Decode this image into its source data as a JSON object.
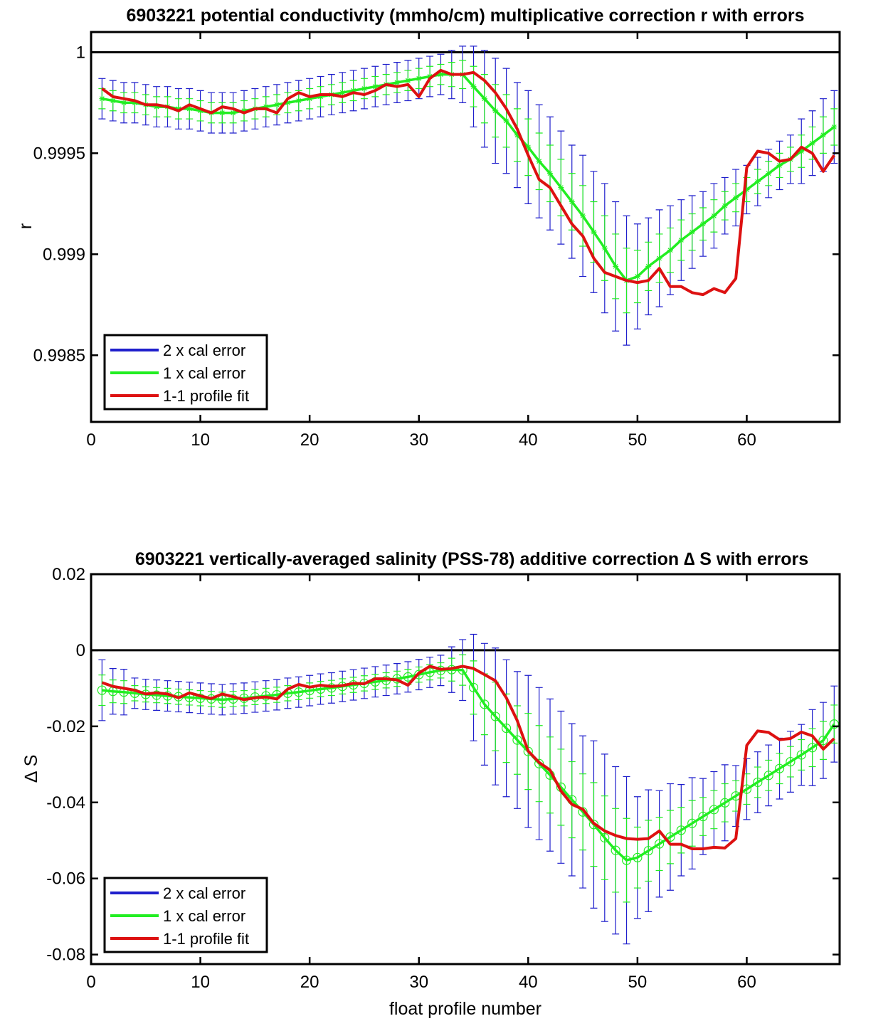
{
  "chart_data": [
    {
      "type": "line",
      "title": "6903221 potential conductivity (mmho/cm) multiplicative correction r with errors",
      "xlabel": "",
      "ylabel": "r",
      "xlim": [
        0,
        68.5
      ],
      "ylim": [
        0.99817,
        1.0001
      ],
      "reference_line": 1,
      "grid": false,
      "legend_placement": "bottom-left",
      "xticks": [
        "0",
        "10",
        "20",
        "30",
        "40",
        "50",
        "60"
      ],
      "yticks": [
        "0.9985",
        "0.999",
        "0.9995",
        "1"
      ],
      "legend": [
        "2 x cal error",
        "1 x cal error",
        "1-1 profile fit"
      ],
      "colors": {
        "two_x": "#1f1fcc",
        "one_x": "#22ee22",
        "fit": "#dd1111",
        "reference": "#000000"
      },
      "x": [
        1,
        2,
        3,
        4,
        5,
        6,
        7,
        8,
        9,
        10,
        11,
        12,
        13,
        14,
        15,
        16,
        17,
        18,
        19,
        20,
        21,
        22,
        23,
        24,
        25,
        26,
        27,
        28,
        29,
        30,
        31,
        32,
        33,
        34,
        35,
        36,
        37,
        38,
        39,
        40,
        41,
        42,
        43,
        44,
        45,
        46,
        47,
        48,
        49,
        50,
        51,
        52,
        53,
        54,
        55,
        56,
        57,
        58,
        59,
        60,
        61,
        62,
        63,
        64,
        65,
        66,
        67,
        68
      ],
      "series": [
        {
          "name": "1 x cal error",
          "marker": "*",
          "values": [
            0.99977,
            0.99976,
            0.99975,
            0.99975,
            0.99974,
            0.99973,
            0.99973,
            0.99972,
            0.99972,
            0.99971,
            0.9997,
            0.9997,
            0.9997,
            0.99971,
            0.99972,
            0.99973,
            0.99974,
            0.99975,
            0.99976,
            0.99977,
            0.99978,
            0.99979,
            0.9998,
            0.99981,
            0.99982,
            0.99983,
            0.99984,
            0.99985,
            0.99986,
            0.99987,
            0.99988,
            0.99989,
            0.99989,
            0.99989,
            0.99983,
            0.99977,
            0.99971,
            0.99966,
            0.99959,
            0.99953,
            0.99946,
            0.9994,
            0.99933,
            0.99926,
            0.99919,
            0.99911,
            0.99903,
            0.99894,
            0.99887,
            0.99889,
            0.99894,
            0.99898,
            0.99902,
            0.99907,
            0.99911,
            0.99915,
            0.99919,
            0.99924,
            0.99928,
            0.99932,
            0.99936,
            0.9994,
            0.99944,
            0.99947,
            0.99951,
            0.99955,
            0.99959,
            0.99963
          ],
          "error": [
            5e-05,
            5e-05,
            5e-05,
            5e-05,
            5e-05,
            5e-05,
            5e-05,
            5e-05,
            5e-05,
            5e-05,
            5e-05,
            5e-05,
            5e-05,
            5e-05,
            5e-05,
            5e-05,
            5e-05,
            5e-05,
            5e-05,
            5e-05,
            5e-05,
            5e-05,
            5e-05,
            5e-05,
            5e-05,
            5e-05,
            5e-05,
            5e-05,
            5e-05,
            5e-05,
            5e-05,
            5e-05,
            6e-05,
            7e-05,
            0.0001,
            0.00012,
            0.00013,
            0.00013,
            0.00013,
            0.00014,
            0.00014,
            0.00014,
            0.00014,
            0.00014,
            0.00015,
            0.00015,
            0.00016,
            0.00016,
            0.00016,
            0.00013,
            0.00012,
            0.00012,
            0.00011,
            0.0001,
            9e-05,
            8e-05,
            8e-05,
            7e-05,
            7e-05,
            6e-05,
            6e-05,
            6e-05,
            6e-05,
            6e-05,
            8e-05,
            8e-05,
            9e-05,
            9e-05
          ]
        },
        {
          "name": "1-1 profile fit",
          "values": [
            0.99982,
            0.99978,
            0.99977,
            0.99976,
            0.99974,
            0.99974,
            0.99973,
            0.99971,
            0.99974,
            0.99972,
            0.9997,
            0.99973,
            0.99972,
            0.9997,
            0.99972,
            0.99972,
            0.9997,
            0.99977,
            0.9998,
            0.99978,
            0.99979,
            0.99979,
            0.99978,
            0.9998,
            0.99979,
            0.99981,
            0.99984,
            0.99983,
            0.99984,
            0.99978,
            0.99987,
            0.99991,
            0.99989,
            0.99989,
            0.9999,
            0.99986,
            0.9998,
            0.99972,
            0.99962,
            0.99949,
            0.99937,
            0.99933,
            0.99924,
            0.99915,
            0.99909,
            0.99898,
            0.99891,
            0.99889,
            0.99887,
            0.99886,
            0.99887,
            0.99893,
            0.99884,
            0.99884,
            0.99881,
            0.9988,
            0.99883,
            0.99881,
            0.99888,
            0.99943,
            0.99951,
            0.9995,
            0.99946,
            0.99947,
            0.99953,
            0.9995,
            0.99941,
            0.99949
          ]
        }
      ]
    },
    {
      "type": "line",
      "title": "6903221 vertically-averaged salinity (PSS-78) additive correction ∆ S with errors",
      "xlabel": "float profile number",
      "ylabel": "∆ S",
      "xlim": [
        0,
        68.5
      ],
      "ylim": [
        -0.0825,
        0.02
      ],
      "reference_line": 0,
      "grid": false,
      "legend_placement": "bottom-left",
      "xticks": [
        "0",
        "10",
        "20",
        "30",
        "40",
        "50",
        "60"
      ],
      "yticks": [
        "-0.08",
        "-0.06",
        "-0.04",
        "-0.02",
        "0",
        "0.02"
      ],
      "legend": [
        "2 x cal error",
        "1 x cal error",
        "1-1 profile fit"
      ],
      "colors": {
        "two_x": "#1f1fcc",
        "one_x": "#22ee22",
        "fit": "#dd1111",
        "reference": "#000000"
      },
      "x": [
        1,
        2,
        3,
        4,
        5,
        6,
        7,
        8,
        9,
        10,
        11,
        12,
        13,
        14,
        15,
        16,
        17,
        18,
        19,
        20,
        21,
        22,
        23,
        24,
        25,
        26,
        27,
        28,
        29,
        30,
        31,
        32,
        33,
        34,
        35,
        36,
        37,
        38,
        39,
        40,
        41,
        42,
        43,
        44,
        45,
        46,
        47,
        48,
        49,
        50,
        51,
        52,
        53,
        54,
        55,
        56,
        57,
        58,
        59,
        60,
        61,
        62,
        63,
        64,
        65,
        66,
        67,
        68
      ],
      "series": [
        {
          "name": "1 x cal error",
          "marker": "o",
          "values": [
            -0.0105,
            -0.0108,
            -0.011,
            -0.0113,
            -0.0116,
            -0.0118,
            -0.012,
            -0.0122,
            -0.0124,
            -0.0126,
            -0.0128,
            -0.013,
            -0.0128,
            -0.0126,
            -0.0123,
            -0.012,
            -0.0117,
            -0.0113,
            -0.011,
            -0.0106,
            -0.0102,
            -0.0099,
            -0.0095,
            -0.0091,
            -0.0087,
            -0.0083,
            -0.0079,
            -0.0075,
            -0.007,
            -0.0064,
            -0.0058,
            -0.0053,
            -0.0051,
            -0.0052,
            -0.0098,
            -0.0142,
            -0.0174,
            -0.0205,
            -0.0236,
            -0.0266,
            -0.0298,
            -0.0328,
            -0.036,
            -0.0393,
            -0.0425,
            -0.0458,
            -0.0493,
            -0.0526,
            -0.0552,
            -0.0545,
            -0.0527,
            -0.0509,
            -0.0491,
            -0.0473,
            -0.0455,
            -0.0437,
            -0.0419,
            -0.0401,
            -0.0383,
            -0.0365,
            -0.0347,
            -0.0329,
            -0.0311,
            -0.0293,
            -0.0275,
            -0.0256,
            -0.0237,
            -0.0194
          ],
          "error": [
            0.004,
            0.003,
            0.003,
            0.002,
            0.002,
            0.002,
            0.002,
            0.002,
            0.002,
            0.002,
            0.002,
            0.002,
            0.002,
            0.002,
            0.002,
            0.002,
            0.002,
            0.002,
            0.002,
            0.002,
            0.002,
            0.002,
            0.002,
            0.002,
            0.002,
            0.002,
            0.002,
            0.002,
            0.002,
            0.002,
            0.002,
            0.002,
            0.003,
            0.004,
            0.007,
            0.008,
            0.009,
            0.009,
            0.009,
            0.01,
            0.01,
            0.01,
            0.01,
            0.01,
            0.01,
            0.011,
            0.011,
            0.011,
            0.011,
            0.008,
            0.008,
            0.007,
            0.007,
            0.006,
            0.006,
            0.005,
            0.005,
            0.005,
            0.004,
            0.004,
            0.004,
            0.004,
            0.004,
            0.004,
            0.004,
            0.005,
            0.005,
            0.005
          ]
        },
        {
          "name": "1-1 profile fit",
          "values": [
            -0.0085,
            -0.0095,
            -0.01,
            -0.0105,
            -0.0115,
            -0.0112,
            -0.0115,
            -0.0125,
            -0.0112,
            -0.012,
            -0.0127,
            -0.0115,
            -0.0122,
            -0.013,
            -0.0125,
            -0.0123,
            -0.0128,
            -0.0102,
            -0.009,
            -0.0097,
            -0.0092,
            -0.0095,
            -0.0093,
            -0.0087,
            -0.0088,
            -0.0075,
            -0.0075,
            -0.0078,
            -0.0092,
            -0.006,
            -0.0042,
            -0.005,
            -0.0048,
            -0.0042,
            -0.0048,
            -0.0064,
            -0.008,
            -0.0125,
            -0.0185,
            -0.0265,
            -0.0295,
            -0.0315,
            -0.037,
            -0.0405,
            -0.0418,
            -0.0455,
            -0.0475,
            -0.0487,
            -0.0495,
            -0.0497,
            -0.0495,
            -0.0475,
            -0.051,
            -0.051,
            -0.0522,
            -0.0522,
            -0.0518,
            -0.052,
            -0.0495,
            -0.025,
            -0.0212,
            -0.0216,
            -0.0235,
            -0.0232,
            -0.0215,
            -0.0225,
            -0.026,
            -0.0232
          ]
        }
      ]
    }
  ]
}
